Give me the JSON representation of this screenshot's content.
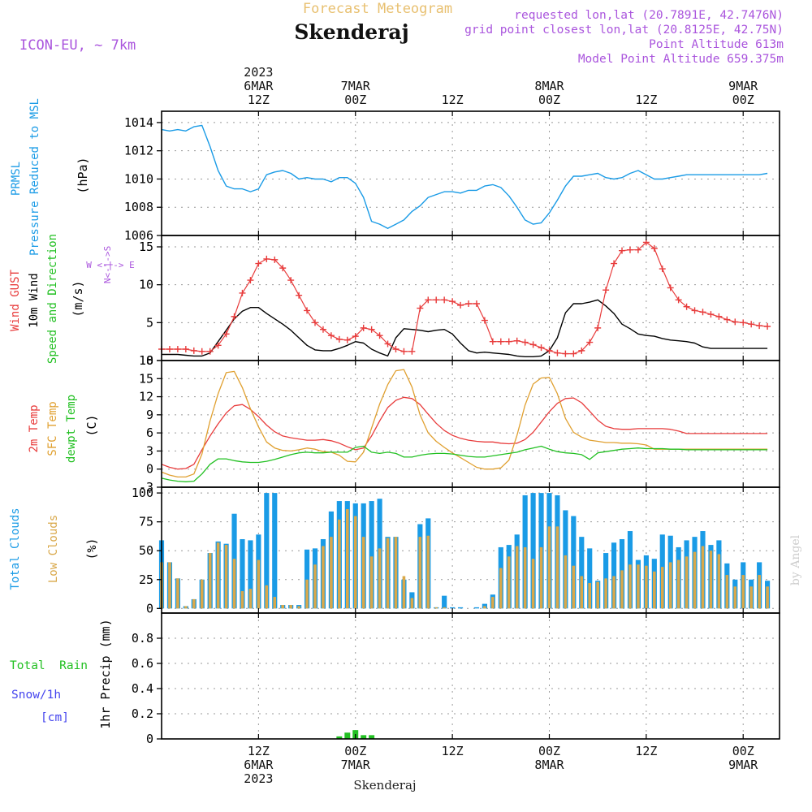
{
  "header": {
    "forecast_title": "Forecast Meteogram",
    "station": "Skenderaj",
    "model": "ICON-EU, ~ 7km",
    "requested": "requested lon,lat (20.7891E, 42.7476N)",
    "grid_point": "grid point closest lon,lat (20.8125E, 42.75N)",
    "point_altitude": "Point Altitude 613m",
    "model_altitude": "Model Point Altitude 659.375m",
    "footer_station": "Skenderaj",
    "watermark": "by Angel"
  },
  "colors": {
    "pressure": "#1a9be6",
    "gust": "#e83c3c",
    "wind": "#000000",
    "temp2m": "#e83c3c",
    "sfc_temp": "#e0a030",
    "dewpt": "#22c022",
    "total_clouds": "#1a9be6",
    "low_clouds": "#d9a84a",
    "rain": "#22c022",
    "snow": "#4444ee",
    "header_purple": "#aa55dd",
    "forecast_orange": "#e8c070",
    "watermark": "#cccccc"
  },
  "time_axis": {
    "top_labels": [
      {
        "t": 12,
        "lines": [
          "2023",
          "6MAR",
          "12Z"
        ]
      },
      {
        "t": 24,
        "lines": [
          "7MAR",
          "00Z"
        ]
      },
      {
        "t": 36,
        "lines": [
          "12Z"
        ]
      },
      {
        "t": 48,
        "lines": [
          "8MAR",
          "00Z"
        ]
      },
      {
        "t": 60,
        "lines": [
          "12Z"
        ]
      },
      {
        "t": 72,
        "lines": [
          "9MAR",
          "00Z"
        ]
      }
    ],
    "bottom_labels": [
      {
        "t": 12,
        "lines": [
          "12Z",
          "6MAR",
          "2023"
        ]
      },
      {
        "t": 24,
        "lines": [
          "00Z",
          "7MAR"
        ]
      },
      {
        "t": 36,
        "lines": [
          "12Z"
        ]
      },
      {
        "t": 48,
        "lines": [
          "00Z",
          "8MAR"
        ]
      },
      {
        "t": 60,
        "lines": [
          "12Z"
        ]
      },
      {
        "t": 72,
        "lines": [
          "00Z",
          "9MAR"
        ]
      }
    ]
  },
  "panel_labels": {
    "pressure": {
      "line1": "PRMSL",
      "line2": "Pressure Reduced to MSL",
      "unit": "(hPa)"
    },
    "wind": {
      "gust": "Wind GUST",
      "wind10": "10m Wind",
      "speed_dir": "Speed and Direction",
      "unit": "(m/s)",
      "compass": "W <-|-> E",
      "compass_n": "N<-|->S"
    },
    "temp": {
      "t2m": "2m Temp",
      "sfc": "SFC Temp",
      "dew": "dewpt Temp",
      "unit": "(C)"
    },
    "clouds": {
      "total": "Total Clouds",
      "low": "Low Clouds",
      "unit": "(%)"
    },
    "precip": {
      "rain": "Total  Rain",
      "snow": "Snow/1h",
      "snow_unit": "[cm]",
      "axis": "1hr Precip (mm)"
    }
  },
  "chart_data": [
    {
      "type": "line",
      "panel": "pressure",
      "ylim": [
        1006,
        1014.8
      ],
      "yticks": [
        1006,
        1008,
        1010,
        1012,
        1014
      ],
      "x": [
        0,
        1,
        2,
        3,
        4,
        5,
        6,
        7,
        8,
        9,
        10,
        11,
        12,
        13,
        14,
        15,
        16,
        17,
        18,
        19,
        20,
        21,
        22,
        23,
        24,
        25,
        26,
        27,
        28,
        29,
        30,
        31,
        32,
        33,
        34,
        35,
        36,
        37,
        38,
        39,
        40,
        41,
        42,
        43,
        44,
        45,
        46,
        47,
        48,
        49,
        50,
        51,
        52,
        53,
        54,
        55,
        56,
        57,
        58,
        59,
        60,
        61,
        62,
        63,
        64,
        65,
        66,
        67,
        68,
        69,
        70,
        71,
        72,
        73,
        74,
        75
      ],
      "values": [
        1013.5,
        1013.4,
        1013.5,
        1013.4,
        1013.7,
        1013.8,
        1012.3,
        1010.6,
        1009.5,
        1009.3,
        1009.3,
        1009.1,
        1009.3,
        1010.3,
        1010.5,
        1010.6,
        1010.4,
        1010.0,
        1010.1,
        1010.0,
        1010.0,
        1009.8,
        1010.1,
        1010.1,
        1009.7,
        1008.7,
        1007.0,
        1006.8,
        1006.5,
        1006.8,
        1007.1,
        1007.7,
        1008.1,
        1008.7,
        1008.9,
        1009.1,
        1009.1,
        1009.0,
        1009.2,
        1009.2,
        1009.5,
        1009.6,
        1009.4,
        1008.8,
        1008.0,
        1007.1,
        1006.8,
        1006.9,
        1007.6,
        1008.5,
        1009.5,
        1010.2,
        1010.2,
        1010.3,
        1010.4,
        1010.1,
        1010.0,
        1010.1,
        1010.4,
        1010.6,
        1010.3,
        1010.0,
        1010.0,
        1010.1,
        1010.2,
        1010.3,
        1010.3,
        1010.3,
        1010.3,
        1010.3,
        1010.3,
        1010.3,
        1010.3,
        1010.3,
        1010.3,
        1010.4
      ]
    },
    {
      "type": "line",
      "panel": "wind",
      "ylim": [
        0,
        16.5
      ],
      "yticks": [
        0,
        5,
        10,
        15
      ],
      "x": [
        0,
        1,
        2,
        3,
        4,
        5,
        6,
        7,
        8,
        9,
        10,
        11,
        12,
        13,
        14,
        15,
        16,
        17,
        18,
        19,
        20,
        21,
        22,
        23,
        24,
        25,
        26,
        27,
        28,
        29,
        30,
        31,
        32,
        33,
        34,
        35,
        36,
        37,
        38,
        39,
        40,
        41,
        42,
        43,
        44,
        45,
        46,
        47,
        48,
        49,
        50,
        51,
        52,
        53,
        54,
        55,
        56,
        57,
        58,
        59,
        60,
        61,
        62,
        63,
        64,
        65,
        66,
        67,
        68,
        69,
        70,
        71,
        72,
        73,
        74,
        75
      ],
      "series": [
        {
          "name": "Wind GUST",
          "values": [
            1.5,
            1.5,
            1.5,
            1.5,
            1.3,
            1.2,
            1.2,
            2.0,
            3.5,
            5.8,
            8.9,
            10.6,
            12.8,
            13.4,
            13.3,
            12.2,
            10.6,
            8.6,
            6.6,
            5.0,
            4.1,
            3.3,
            2.8,
            2.7,
            3.2,
            4.3,
            4.1,
            3.3,
            2.2,
            1.5,
            1.2,
            1.2,
            6.9,
            8.0,
            8.0,
            8.0,
            7.8,
            7.3,
            7.5,
            7.5,
            5.3,
            2.5,
            2.5,
            2.5,
            2.6,
            2.4,
            2.1,
            1.7,
            1.3,
            1.0,
            0.9,
            0.9,
            1.3,
            2.4,
            4.3,
            9.3,
            12.8,
            14.5,
            14.6,
            14.6,
            15.6,
            14.8,
            12.1,
            9.6,
            8.0,
            7.1,
            6.6,
            6.4,
            6.1,
            5.8,
            5.4,
            5.1,
            5.0,
            4.8,
            4.6,
            4.5
          ]
        },
        {
          "name": "10m Wind",
          "values": [
            0.8,
            0.8,
            0.8,
            0.7,
            0.6,
            0.6,
            1.0,
            2.5,
            4.0,
            5.5,
            6.5,
            7.0,
            7.0,
            6.2,
            5.5,
            4.8,
            4.0,
            3.0,
            2.0,
            1.4,
            1.3,
            1.3,
            1.6,
            2.0,
            2.5,
            2.3,
            1.5,
            1.0,
            0.6,
            3.0,
            4.2,
            4.1,
            4.0,
            3.8,
            4.0,
            4.1,
            3.5,
            2.3,
            1.3,
            1.0,
            1.1,
            1.0,
            0.9,
            0.8,
            0.6,
            0.5,
            0.5,
            0.6,
            1.3,
            3.0,
            6.3,
            7.5,
            7.5,
            7.7,
            8.0,
            7.2,
            6.2,
            4.8,
            4.2,
            3.5,
            3.3,
            3.2,
            2.9,
            2.7,
            2.6,
            2.5,
            2.3,
            1.8,
            1.6,
            1.6,
            1.6,
            1.6,
            1.6,
            1.6,
            1.6,
            1.6
          ]
        }
      ]
    },
    {
      "type": "line",
      "panel": "temperature",
      "ylim": [
        -3,
        18
      ],
      "yticks": [
        -3,
        0,
        3,
        6,
        9,
        12,
        15,
        18
      ],
      "x": [
        0,
        1,
        2,
        3,
        4,
        5,
        6,
        7,
        8,
        9,
        10,
        11,
        12,
        13,
        14,
        15,
        16,
        17,
        18,
        19,
        20,
        21,
        22,
        23,
        24,
        25,
        26,
        27,
        28,
        29,
        30,
        31,
        32,
        33,
        34,
        35,
        36,
        37,
        38,
        39,
        40,
        41,
        42,
        43,
        44,
        45,
        46,
        47,
        48,
        49,
        50,
        51,
        52,
        53,
        54,
        55,
        56,
        57,
        58,
        59,
        60,
        61,
        62,
        63,
        64,
        65,
        66,
        67,
        68,
        69,
        70,
        71,
        72,
        73,
        74,
        75
      ],
      "series": [
        {
          "name": "2m Temp",
          "values": [
            0.8,
            0.3,
            0.0,
            0.1,
            0.8,
            3.2,
            5.5,
            7.5,
            9.3,
            10.5,
            10.7,
            9.9,
            8.7,
            7.3,
            6.2,
            5.5,
            5.2,
            5.0,
            4.8,
            4.8,
            4.9,
            4.7,
            4.3,
            3.7,
            3.2,
            3.5,
            5.5,
            8.0,
            10.2,
            11.4,
            11.9,
            11.7,
            10.7,
            9.1,
            7.6,
            6.4,
            5.6,
            5.1,
            4.8,
            4.6,
            4.5,
            4.5,
            4.3,
            4.2,
            4.3,
            4.9,
            6.1,
            7.8,
            9.5,
            10.9,
            11.7,
            11.8,
            11.0,
            9.6,
            8.1,
            7.1,
            6.7,
            6.6,
            6.6,
            6.7,
            6.7,
            6.7,
            6.7,
            6.6,
            6.3,
            5.9,
            5.9,
            5.9,
            5.9,
            5.9,
            5.9,
            5.9,
            5.9,
            5.9,
            5.9,
            5.9
          ]
        },
        {
          "name": "SFC Temp",
          "values": [
            -0.5,
            -1.0,
            -1.3,
            -1.3,
            -0.8,
            2.5,
            8.0,
            12.5,
            16.0,
            16.2,
            13.5,
            10.0,
            7.0,
            4.5,
            3.5,
            3.1,
            3.0,
            3.2,
            3.5,
            3.3,
            2.9,
            2.8,
            2.3,
            1.3,
            1.2,
            2.8,
            6.8,
            10.8,
            14.0,
            16.3,
            16.5,
            13.6,
            9.0,
            6.0,
            4.6,
            3.6,
            2.7,
            1.9,
            1.1,
            0.3,
            0.0,
            0.0,
            0.2,
            1.5,
            5.6,
            10.6,
            14.1,
            15.1,
            15.2,
            12.5,
            8.4,
            6.1,
            5.3,
            4.8,
            4.6,
            4.4,
            4.4,
            4.3,
            4.3,
            4.2,
            4.0,
            3.3,
            3.3,
            3.3,
            3.3,
            3.3,
            3.3,
            3.3,
            3.3,
            3.3,
            3.3,
            3.3,
            3.3,
            3.3,
            3.3,
            3.3
          ]
        },
        {
          "name": "dewpt Temp",
          "values": [
            -1.5,
            -1.8,
            -2.0,
            -2.1,
            -2.0,
            -0.8,
            0.8,
            1.7,
            1.7,
            1.4,
            1.2,
            1.1,
            1.1,
            1.3,
            1.6,
            2.0,
            2.4,
            2.7,
            2.8,
            2.7,
            2.7,
            2.8,
            2.8,
            2.8,
            3.6,
            3.8,
            2.8,
            2.6,
            2.8,
            2.6,
            2.0,
            2.0,
            2.3,
            2.5,
            2.6,
            2.6,
            2.5,
            2.3,
            2.1,
            2.0,
            2.0,
            2.2,
            2.4,
            2.6,
            2.8,
            3.2,
            3.5,
            3.8,
            3.3,
            2.9,
            2.7,
            2.6,
            2.4,
            1.6,
            2.7,
            2.9,
            3.1,
            3.3,
            3.4,
            3.5,
            3.4,
            3.4,
            3.4,
            3.3,
            3.3,
            3.2,
            3.2,
            3.2,
            3.2,
            3.2,
            3.2,
            3.2,
            3.2,
            3.2,
            3.2,
            3.2
          ]
        }
      ]
    },
    {
      "type": "bar",
      "panel": "clouds",
      "ylim": [
        -4,
        105
      ],
      "yticks": [
        0,
        25,
        50,
        75,
        100
      ],
      "x": [
        0,
        1,
        2,
        3,
        4,
        5,
        6,
        7,
        8,
        9,
        10,
        11,
        12,
        13,
        14,
        15,
        16,
        17,
        18,
        19,
        20,
        21,
        22,
        23,
        24,
        25,
        26,
        27,
        28,
        29,
        30,
        31,
        32,
        33,
        34,
        35,
        36,
        37,
        38,
        39,
        40,
        41,
        42,
        43,
        44,
        45,
        46,
        47,
        48,
        49,
        50,
        51,
        52,
        53,
        54,
        55,
        56,
        57,
        58,
        59,
        60,
        61,
        62,
        63,
        64,
        65,
        66,
        67,
        68,
        69,
        70,
        71,
        72,
        73,
        74,
        75
      ],
      "series": [
        {
          "name": "Total Clouds",
          "values": [
            59,
            40,
            26,
            2,
            8,
            25,
            48,
            58,
            56,
            82,
            60,
            59,
            64,
            100,
            100,
            3,
            3,
            3,
            51,
            52,
            60,
            84,
            93,
            93,
            91,
            91,
            93,
            95,
            62,
            62,
            25,
            14,
            73,
            78,
            1,
            11,
            1,
            1,
            0,
            1,
            4,
            12,
            53,
            55,
            64,
            98,
            100,
            100,
            100,
            98,
            85,
            80,
            62,
            52,
            24,
            48,
            57,
            60,
            67,
            42,
            46,
            43,
            64,
            63,
            53,
            59,
            62,
            67,
            55,
            59,
            39,
            25,
            40,
            25,
            40,
            24
          ]
        },
        {
          "name": "Low Clouds",
          "values": [
            40,
            40,
            26,
            2,
            8,
            25,
            48,
            57,
            55,
            43,
            15,
            17,
            42,
            20,
            10,
            3,
            3,
            2,
            25,
            38,
            54,
            62,
            77,
            86,
            80,
            62,
            45,
            52,
            61,
            62,
            28,
            9,
            62,
            63,
            1,
            1,
            0,
            0,
            0,
            0,
            2,
            10,
            35,
            45,
            54,
            53,
            43,
            53,
            71,
            71,
            46,
            37,
            28,
            22,
            23,
            26,
            28,
            33,
            38,
            38,
            37,
            32,
            36,
            40,
            42,
            45,
            49,
            54,
            50,
            47,
            29,
            19,
            29,
            19,
            29,
            19
          ]
        }
      ]
    },
    {
      "type": "bar",
      "panel": "precipitation",
      "ylim": [
        0,
        1.0
      ],
      "yticks": [
        0,
        0.2,
        0.4,
        0.6,
        0.8
      ],
      "series": [
        {
          "name": "Total Rain",
          "x": [
            22,
            23,
            24,
            25,
            26
          ],
          "values": [
            0.02,
            0.05,
            0.07,
            0.03,
            0.03
          ]
        }
      ]
    }
  ]
}
